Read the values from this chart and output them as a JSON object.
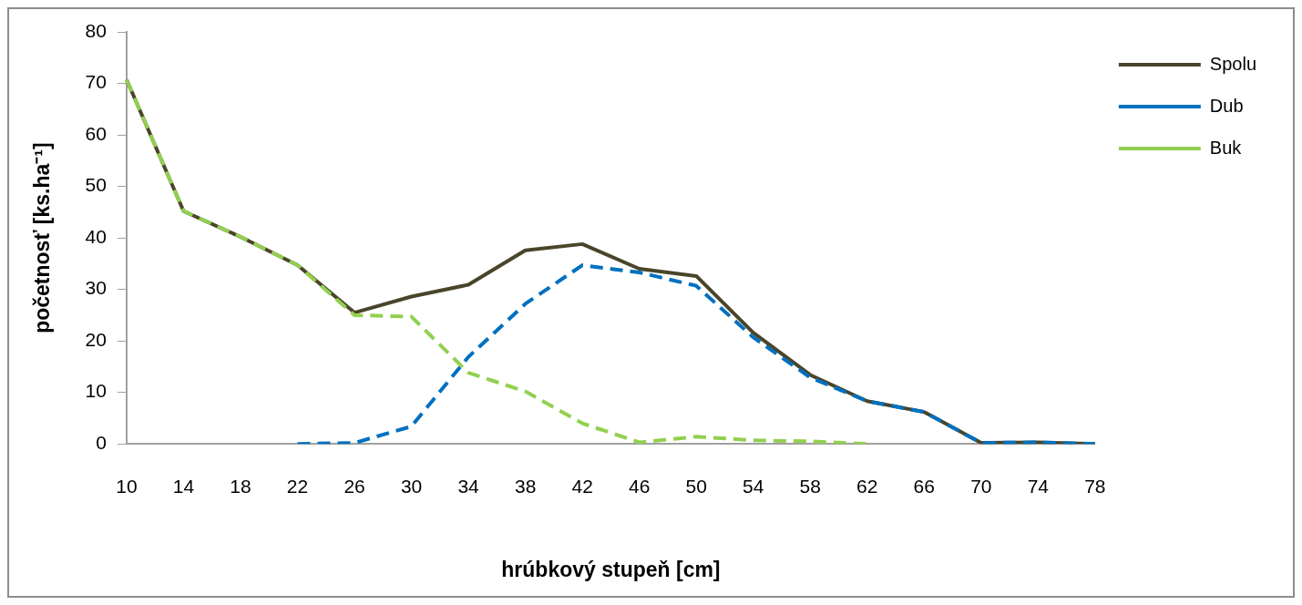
{
  "chart_data": {
    "type": "line",
    "xlabel": "hrúbkový stupeň [cm]",
    "ylabel": "početnosť [ks.ha⁻¹]",
    "categories": [
      "10",
      "14",
      "18",
      "22",
      "26",
      "30",
      "34",
      "38",
      "42",
      "46",
      "50",
      "54",
      "58",
      "62",
      "66",
      "70",
      "74",
      "78"
    ],
    "series": [
      {
        "name": "Spolu",
        "color": "#4a452a",
        "line_style": "solid",
        "values": [
          70.7,
          45.2,
          40.2,
          34.7,
          25.5,
          28.6,
          30.9,
          37.6,
          38.8,
          34.0,
          32.6,
          21.6,
          13.4,
          8.3,
          6.2,
          0.2,
          0.3,
          0
        ]
      },
      {
        "name": "Dub",
        "color": "#0070c0",
        "line_style": "dashed",
        "values": [
          null,
          null,
          null,
          0,
          0.2,
          3.4,
          16.9,
          27.2,
          34.7,
          33.3,
          30.7,
          20.7,
          12.9,
          8.3,
          6.2,
          0.2,
          0.3,
          0
        ]
      },
      {
        "name": "Buk",
        "color": "#92d050",
        "line_style": "dashed",
        "values": [
          70.7,
          45.2,
          40.2,
          34.7,
          25,
          24.7,
          13.8,
          10.2,
          4,
          0.3,
          1.4,
          0.7,
          0.5,
          0,
          null,
          null,
          null,
          null
        ]
      }
    ],
    "ylim": [
      0,
      80
    ],
    "yticks": [
      0,
      10,
      20,
      30,
      40,
      50,
      60,
      70,
      80
    ],
    "grid": false,
    "legend": "top right",
    "marker": "none"
  }
}
